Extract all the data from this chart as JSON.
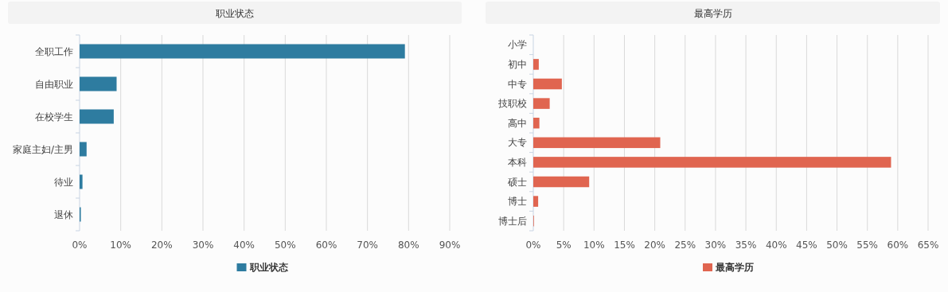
{
  "chart_data": [
    {
      "type": "bar",
      "orientation": "horizontal",
      "title": "职业状态",
      "categories": [
        "全职工作",
        "自由职业",
        "在校学生",
        "家庭主妇/主男",
        "待业",
        "退休"
      ],
      "series": [
        {
          "name": "职业状态",
          "color": "#2e7ca0",
          "values": [
            79.1,
            9.0,
            8.3,
            1.7,
            0.7,
            0.3
          ]
        }
      ],
      "xlim": [
        0,
        90
      ],
      "xticks": [
        {
          "value": 0,
          "label": "0%"
        },
        {
          "value": 10,
          "label": "10%"
        },
        {
          "value": 20,
          "label": "20%"
        },
        {
          "value": 30,
          "label": "30%"
        },
        {
          "value": 40,
          "label": "40%"
        },
        {
          "value": 50,
          "label": "50%"
        },
        {
          "value": 60,
          "label": "60%"
        },
        {
          "value": 70,
          "label": "70%"
        },
        {
          "value": 80,
          "label": "80%"
        },
        {
          "value": 90,
          "label": "90%"
        }
      ],
      "grid": "x",
      "legend": "bottom"
    },
    {
      "type": "bar",
      "orientation": "horizontal",
      "title": "最高学历",
      "categories": [
        "小学",
        "初中",
        "中专",
        "技职校",
        "高中",
        "大专",
        "本科",
        "硕士",
        "博士",
        "博士后"
      ],
      "series": [
        {
          "name": "最高学历",
          "color": "#e06550",
          "values": [
            0,
            0.9,
            4.7,
            2.7,
            1.0,
            20.9,
            58.9,
            9.2,
            0.8,
            0.1
          ]
        }
      ],
      "xlim": [
        0,
        65
      ],
      "xticks": [
        {
          "value": 0,
          "label": "0%"
        },
        {
          "value": 5,
          "label": "5%"
        },
        {
          "value": 10,
          "label": "10%"
        },
        {
          "value": 15,
          "label": "15%"
        },
        {
          "value": 20,
          "label": "20%"
        },
        {
          "value": 25,
          "label": "25%"
        },
        {
          "value": 30,
          "label": "30%"
        },
        {
          "value": 35,
          "label": "35%"
        },
        {
          "value": 40,
          "label": "40%"
        },
        {
          "value": 45,
          "label": "45%"
        },
        {
          "value": 50,
          "label": "50%"
        },
        {
          "value": 55,
          "label": "55%"
        },
        {
          "value": 60,
          "label": "60%"
        },
        {
          "value": 65,
          "label": "65%"
        }
      ],
      "grid": "x",
      "legend": "bottom"
    }
  ]
}
